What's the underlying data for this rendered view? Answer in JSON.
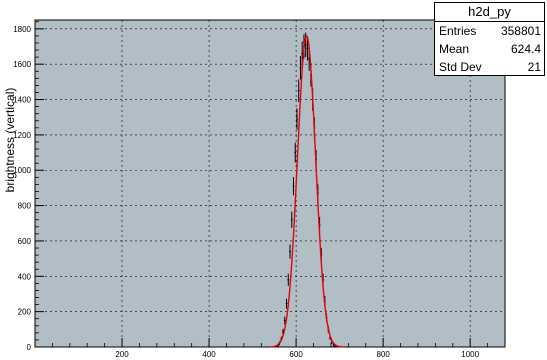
{
  "colors": {
    "frame_fill": "#b2bec5",
    "histogram": "#000000",
    "fit": "#e8000b",
    "grid": "#000000"
  },
  "stats_box": {
    "title": "h2d_py",
    "rows": [
      {
        "label": "Entries",
        "value": "358801"
      },
      {
        "label": "Mean",
        "value": "624.4"
      },
      {
        "label": "Std Dev",
        "value": "21"
      }
    ]
  },
  "chart_data": {
    "type": "histogram",
    "title": "",
    "xlabel": "",
    "ylabel": "brightness (vertical)",
    "xlim": [
      0,
      1080
    ],
    "ylim": [
      0,
      1850
    ],
    "x_ticks": [
      200,
      400,
      600,
      800,
      1000
    ],
    "y_ticks": [
      0,
      200,
      400,
      600,
      800,
      1000,
      1200,
      1400,
      1600,
      1800
    ],
    "grid": true,
    "legend": "stats box top-right",
    "series": [
      {
        "kind": "histogram-with-error-bars",
        "x": [
          554,
          558,
          562,
          566,
          570,
          574,
          578,
          582,
          586,
          590,
          594,
          598,
          602,
          606,
          610,
          614,
          618,
          622,
          626,
          630,
          634,
          638,
          642,
          646,
          650,
          654,
          658,
          662,
          666,
          670,
          674,
          678,
          682,
          686,
          690,
          694
        ],
        "y": [
          4,
          10,
          22,
          45,
          85,
          150,
          245,
          380,
          540,
          720,
          910,
          1100,
          1290,
          1450,
          1580,
          1660,
          1700,
          1710,
          1690,
          1630,
          1540,
          1400,
          1240,
          1060,
          870,
          690,
          520,
          380,
          260,
          165,
          100,
          55,
          28,
          12,
          5,
          2
        ]
      },
      {
        "kind": "gaussian-fit",
        "function": "gaussian",
        "amplitude": 1760,
        "mean": 624,
        "sigma": 21
      }
    ]
  }
}
